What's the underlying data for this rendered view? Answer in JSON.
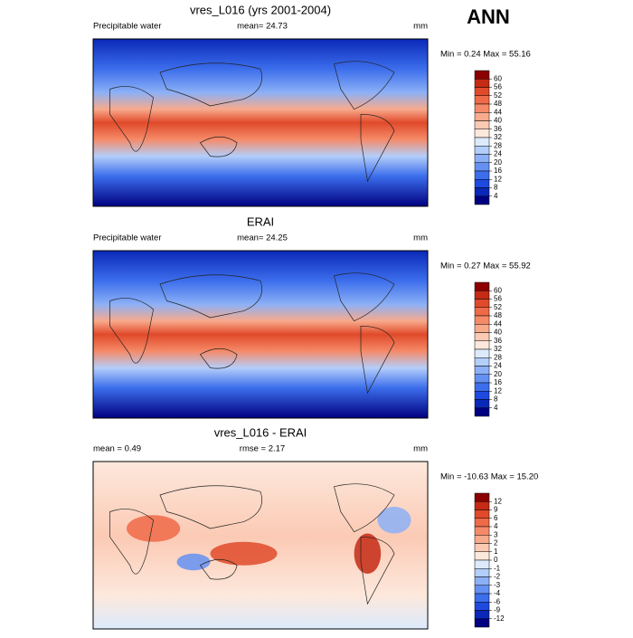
{
  "header": {
    "season": "ANN"
  },
  "panels": [
    {
      "title": "vres_L016 (yrs 2001-2004)",
      "left_label": "Precipitable water",
      "center_label": "mean=  24.73",
      "units": "mm",
      "stats": "Min =   0.24 Max =  55.16",
      "colorbar": {
        "labels": [
          60,
          56,
          52,
          48,
          44,
          40,
          36,
          32,
          28,
          24,
          20,
          16,
          12,
          8,
          4
        ],
        "colors": [
          "#8b0000",
          "#c42a14",
          "#e04a2a",
          "#ee6a48",
          "#f58a68",
          "#f8aa8c",
          "#fbcab4",
          "#fde8dc",
          "#dceafc",
          "#b4cefa",
          "#8cb0f6",
          "#6490f2",
          "#3c6eec",
          "#1e4ae0",
          "#0a28b8",
          "#000080"
        ]
      }
    },
    {
      "title": "ERAI",
      "left_label": "Precipitable water",
      "center_label": "mean=  24.25",
      "units": "mm",
      "stats": "Min =   0.27 Max =  55.92",
      "colorbar": {
        "labels": [
          60,
          56,
          52,
          48,
          44,
          40,
          36,
          32,
          28,
          24,
          20,
          16,
          12,
          8,
          4
        ],
        "colors": [
          "#8b0000",
          "#c42a14",
          "#e04a2a",
          "#ee6a48",
          "#f58a68",
          "#f8aa8c",
          "#fbcab4",
          "#fde8dc",
          "#dceafc",
          "#b4cefa",
          "#8cb0f6",
          "#6490f2",
          "#3c6eec",
          "#1e4ae0",
          "#0a28b8",
          "#000080"
        ]
      }
    },
    {
      "title": "vres_L016 - ERAI",
      "left_label": "mean =   0.49",
      "center_label": "rmse =   2.17",
      "units": "mm",
      "stats": "Min = -10.63 Max =  15.20",
      "colorbar": {
        "labels": [
          12,
          9,
          6,
          4,
          3,
          2,
          1,
          0,
          -1,
          -2,
          -3,
          -4,
          -6,
          -9,
          -12
        ],
        "colors": [
          "#8b0000",
          "#c42a14",
          "#e04a2a",
          "#ee6a48",
          "#f58a68",
          "#f8aa8c",
          "#fbcab4",
          "#fde8dc",
          "#dceafc",
          "#b4cefa",
          "#8cb0f6",
          "#6490f2",
          "#3c6eec",
          "#1e4ae0",
          "#0a28b8",
          "#000080"
        ]
      }
    }
  ]
}
